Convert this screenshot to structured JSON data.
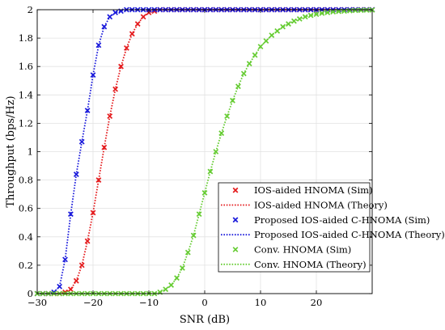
{
  "chart_data": {
    "type": "line",
    "xlabel": "SNR (dB)",
    "ylabel": "Throughput (bps/Hz)",
    "xlim": [
      -30,
      30
    ],
    "ylim": [
      0,
      2
    ],
    "xticks": [
      -30,
      -20,
      -10,
      0,
      10,
      20
    ],
    "xtick_labels": [
      "−30",
      "−20",
      "−10",
      "0",
      "10",
      "20"
    ],
    "yticks": [
      0,
      0.2,
      0.4,
      0.6,
      0.8,
      1,
      1.2,
      1.4,
      1.6,
      1.8,
      2
    ],
    "ytick_labels": [
      "0",
      "0.2",
      "0.4",
      "0.6",
      "0.8",
      "1",
      "1.2",
      "1.4",
      "1.6",
      "1.8",
      "2"
    ],
    "grid": true,
    "legend_position": "bottom-right",
    "x": [
      -30,
      -29,
      -28,
      -27,
      -26,
      -25,
      -24,
      -23,
      -22,
      -21,
      -20,
      -19,
      -18,
      -17,
      -16,
      -15,
      -14,
      -13,
      -12,
      -11,
      -10,
      -9,
      -8,
      -7,
      -6,
      -5,
      -4,
      -3,
      -2,
      -1,
      0,
      1,
      2,
      3,
      4,
      5,
      6,
      7,
      8,
      9,
      10,
      11,
      12,
      13,
      14,
      15,
      16,
      17,
      18,
      19,
      20,
      21,
      22,
      23,
      24,
      25,
      26,
      27,
      28,
      29,
      30
    ],
    "series": [
      {
        "name": "IOS-aided HNOMA (Sim)",
        "style": "markers",
        "color": "#e41a1c",
        "values": [
          0,
          0,
          0,
          0,
          0,
          0.01,
          0.03,
          0.09,
          0.2,
          0.37,
          0.57,
          0.8,
          1.03,
          1.25,
          1.44,
          1.6,
          1.73,
          1.83,
          1.9,
          1.95,
          1.98,
          1.99,
          2,
          2,
          2,
          2,
          2,
          2,
          2,
          2,
          2,
          2,
          2,
          2,
          2,
          2,
          2,
          2,
          2,
          2,
          2,
          2,
          2,
          2,
          2,
          2,
          2,
          2,
          2,
          2,
          2,
          2,
          2,
          2,
          2,
          2,
          2,
          2,
          2,
          2,
          2
        ]
      },
      {
        "name": "IOS-aided HNOMA (Theory)",
        "style": "dotted",
        "color": "#e41a1c",
        "values": [
          0,
          0,
          0,
          0,
          0,
          0.01,
          0.03,
          0.09,
          0.2,
          0.37,
          0.57,
          0.8,
          1.03,
          1.25,
          1.44,
          1.6,
          1.73,
          1.83,
          1.9,
          1.95,
          1.98,
          1.99,
          2,
          2,
          2,
          2,
          2,
          2,
          2,
          2,
          2,
          2,
          2,
          2,
          2,
          2,
          2,
          2,
          2,
          2,
          2,
          2,
          2,
          2,
          2,
          2,
          2,
          2,
          2,
          2,
          2,
          2,
          2,
          2,
          2,
          2,
          2,
          2,
          2,
          2,
          2
        ]
      },
      {
        "name": "Proposed IOS-aided C-HNOMA (Sim)",
        "style": "markers",
        "color": "#1a1adb",
        "values": [
          0,
          0,
          0,
          0.01,
          0.05,
          0.24,
          0.56,
          0.84,
          1.07,
          1.29,
          1.54,
          1.75,
          1.88,
          1.95,
          1.98,
          1.99,
          2,
          2,
          2,
          2,
          2,
          2,
          2,
          2,
          2,
          2,
          2,
          2,
          2,
          2,
          2,
          2,
          2,
          2,
          2,
          2,
          2,
          2,
          2,
          2,
          2,
          2,
          2,
          2,
          2,
          2,
          2,
          2,
          2,
          2,
          2,
          2,
          2,
          2,
          2,
          2,
          2,
          2,
          2,
          2,
          2
        ]
      },
      {
        "name": "Proposed IOS-aided C-HNOMA (Theory)",
        "style": "dotted",
        "color": "#1a1adb",
        "values": [
          0,
          0,
          0,
          0.01,
          0.05,
          0.24,
          0.56,
          0.84,
          1.07,
          1.29,
          1.54,
          1.75,
          1.88,
          1.95,
          1.98,
          1.99,
          2,
          2,
          2,
          2,
          2,
          2,
          2,
          2,
          2,
          2,
          2,
          2,
          2,
          2,
          2,
          2,
          2,
          2,
          2,
          2,
          2,
          2,
          2,
          2,
          2,
          2,
          2,
          2,
          2,
          2,
          2,
          2,
          2,
          2,
          2,
          2,
          2,
          2,
          2,
          2,
          2,
          2,
          2,
          2,
          2
        ]
      },
      {
        "name": "Conv. HNOMA (Sim)",
        "style": "markers",
        "color": "#66cc33",
        "values": [
          0,
          0,
          0,
          0,
          0,
          0,
          0,
          0,
          0,
          0,
          0,
          0,
          0,
          0,
          0,
          0,
          0,
          0,
          0,
          0,
          0,
          0,
          0.01,
          0.03,
          0.06,
          0.11,
          0.18,
          0.29,
          0.41,
          0.56,
          0.71,
          0.86,
          1.0,
          1.13,
          1.25,
          1.36,
          1.46,
          1.55,
          1.62,
          1.68,
          1.74,
          1.78,
          1.82,
          1.85,
          1.88,
          1.9,
          1.92,
          1.935,
          1.95,
          1.96,
          1.968,
          1.975,
          1.98,
          1.985,
          1.988,
          1.99,
          1.993,
          1.995,
          1.996,
          1.997,
          1.998
        ]
      },
      {
        "name": "Conv. HNOMA (Theory)",
        "style": "dotted",
        "color": "#66cc33",
        "values": [
          0,
          0,
          0,
          0,
          0,
          0,
          0,
          0,
          0,
          0,
          0,
          0,
          0,
          0,
          0,
          0,
          0,
          0,
          0,
          0,
          0,
          0,
          0.01,
          0.03,
          0.06,
          0.11,
          0.18,
          0.29,
          0.41,
          0.56,
          0.71,
          0.86,
          1.0,
          1.13,
          1.25,
          1.36,
          1.46,
          1.55,
          1.62,
          1.68,
          1.74,
          1.78,
          1.82,
          1.85,
          1.88,
          1.9,
          1.92,
          1.935,
          1.95,
          1.96,
          1.968,
          1.975,
          1.98,
          1.985,
          1.988,
          1.99,
          1.993,
          1.995,
          1.996,
          1.997,
          1.998
        ]
      }
    ]
  }
}
